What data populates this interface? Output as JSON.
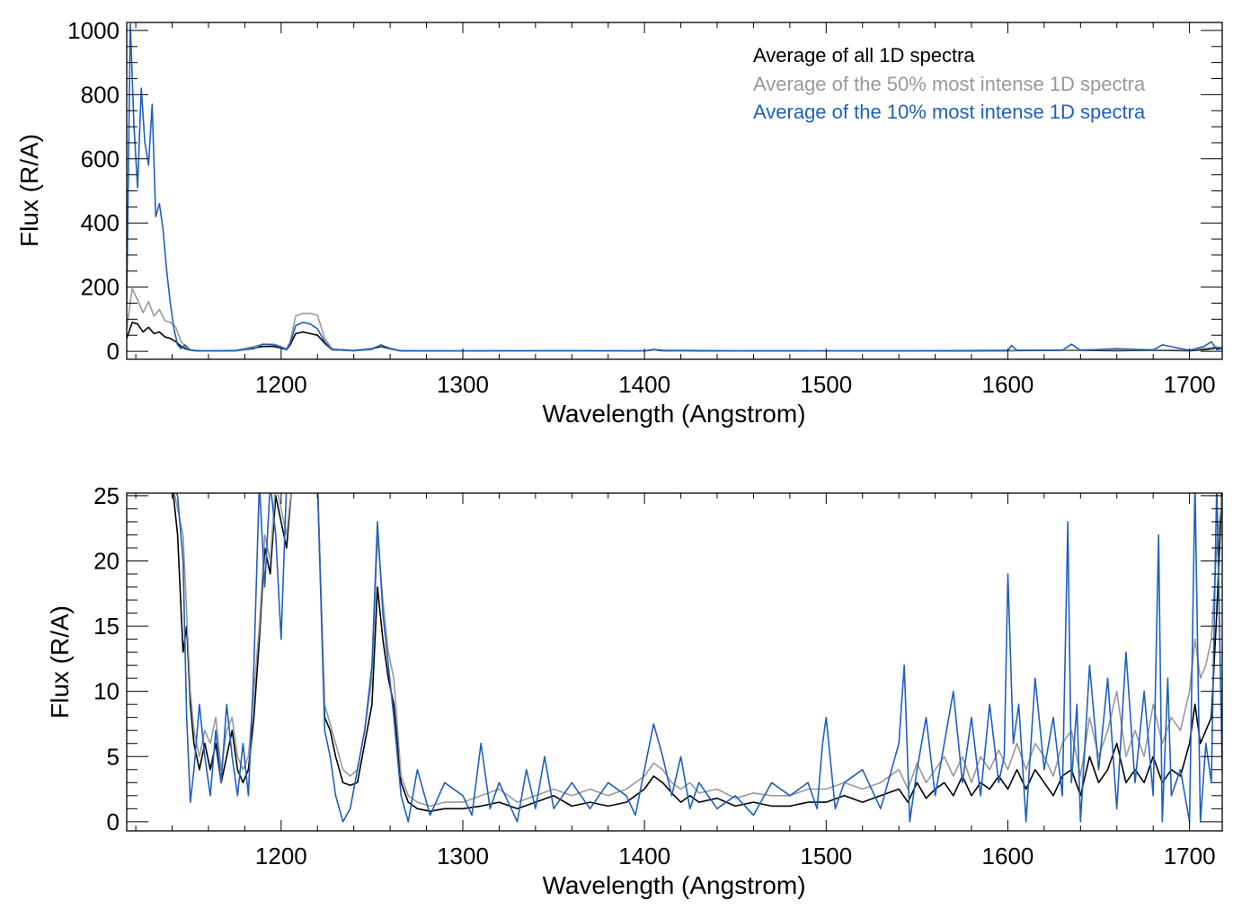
{
  "chart_data": [
    {
      "type": "line",
      "panel": "top",
      "title": "",
      "xlabel": "Wavelength (Angstrom)",
      "ylabel": "Flux (R/A)",
      "xlim": [
        1115,
        1718
      ],
      "ylim": [
        -25,
        1025
      ],
      "xticks": [
        1200,
        1300,
        1400,
        1500,
        1600,
        1700
      ],
      "xtick_labels": [
        "1200",
        "1300",
        "1400",
        "1500",
        "1600",
        "1700"
      ],
      "yticks": [
        0,
        200,
        400,
        600,
        800,
        1000
      ],
      "ytick_labels": [
        "0",
        "200",
        "400",
        "600",
        "800",
        "1000"
      ],
      "legend_placement": "top-right",
      "series": [
        {
          "name": "Average of all 1D spectra",
          "color": "#000000",
          "x": [
            1115,
            1118,
            1121,
            1124,
            1127,
            1130,
            1133,
            1136,
            1139,
            1142,
            1145,
            1148,
            1152,
            1160,
            1175,
            1185,
            1190,
            1196,
            1200,
            1203,
            1205,
            1208,
            1212,
            1216,
            1220,
            1224,
            1228,
            1240,
            1250,
            1255,
            1260,
            1265,
            1275,
            1300,
            1350,
            1400,
            1405,
            1410,
            1450,
            1500,
            1550,
            1600,
            1630,
            1640,
            1660,
            1680,
            1700,
            1710,
            1715,
            1718
          ],
          "values": [
            40,
            90,
            85,
            60,
            75,
            55,
            60,
            45,
            40,
            30,
            15,
            6,
            2,
            1,
            2,
            10,
            15,
            15,
            10,
            5,
            20,
            55,
            60,
            55,
            50,
            25,
            5,
            2,
            8,
            15,
            8,
            2,
            1,
            1,
            1,
            1,
            4,
            2,
            1,
            1,
            1,
            2,
            3,
            3,
            2,
            3,
            2,
            6,
            10,
            8
          ]
        },
        {
          "name": "Average of the 50% most intense 1D spectra",
          "color": "#999999",
          "x": [
            1115,
            1118,
            1121,
            1124,
            1127,
            1130,
            1133,
            1136,
            1139,
            1142,
            1145,
            1148,
            1152,
            1160,
            1175,
            1185,
            1190,
            1196,
            1200,
            1203,
            1205,
            1208,
            1212,
            1216,
            1220,
            1224,
            1228,
            1240,
            1250,
            1255,
            1260,
            1265,
            1275,
            1300,
            1350,
            1400,
            1405,
            1410,
            1450,
            1500,
            1550,
            1600,
            1630,
            1640,
            1660,
            1680,
            1700,
            1710,
            1715,
            1718
          ],
          "values": [
            70,
            195,
            160,
            120,
            155,
            110,
            130,
            95,
            90,
            75,
            30,
            9,
            3,
            1,
            3,
            15,
            22,
            22,
            15,
            8,
            30,
            110,
            118,
            118,
            112,
            40,
            8,
            3,
            10,
            18,
            10,
            3,
            1,
            1,
            1,
            1,
            4,
            3,
            2,
            2,
            2,
            3,
            4,
            5,
            4,
            5,
            4,
            10,
            14,
            12
          ]
        },
        {
          "name": "Average of the 10% most intense 1D spectra",
          "color": "#1f5fbf",
          "x": [
            1115,
            1117,
            1119,
            1121,
            1123,
            1125,
            1127,
            1129,
            1131,
            1133,
            1135,
            1137,
            1139,
            1141,
            1143,
            1145,
            1147,
            1150,
            1160,
            1175,
            1185,
            1190,
            1196,
            1200,
            1203,
            1205,
            1208,
            1212,
            1216,
            1220,
            1224,
            1228,
            1240,
            1250,
            1255,
            1260,
            1265,
            1275,
            1300,
            1350,
            1400,
            1405,
            1410,
            1450,
            1500,
            1550,
            1600,
            1602,
            1605,
            1630,
            1635,
            1640,
            1660,
            1680,
            1685,
            1700,
            1708,
            1712,
            1715,
            1718
          ],
          "values": [
            150,
            1020,
            700,
            510,
            820,
            650,
            580,
            770,
            420,
            460,
            380,
            250,
            150,
            70,
            20,
            8,
            20,
            3,
            1,
            2,
            8,
            22,
            20,
            12,
            5,
            25,
            80,
            90,
            85,
            70,
            30,
            5,
            2,
            6,
            20,
            8,
            2,
            1,
            1,
            2,
            1,
            6,
            3,
            1,
            1,
            1,
            3,
            18,
            3,
            3,
            22,
            3,
            8,
            4,
            20,
            3,
            15,
            30,
            5,
            8
          ]
        }
      ]
    },
    {
      "type": "line",
      "panel": "bottom",
      "title": "",
      "xlabel": "Wavelength (Angstrom)",
      "ylabel": "Flux (R/A)",
      "xlim": [
        1115,
        1718
      ],
      "ylim": [
        -0.7,
        25.2
      ],
      "xticks": [
        1200,
        1300,
        1400,
        1500,
        1600,
        1700
      ],
      "xtick_labels": [
        "1200",
        "1300",
        "1400",
        "1500",
        "1600",
        "1700"
      ],
      "yticks": [
        0,
        5,
        10,
        15,
        20,
        25
      ],
      "ytick_labels": [
        "0",
        "5",
        "10",
        "15",
        "20",
        "25"
      ],
      "series": [
        {
          "name": "Average of all 1D spectra",
          "color": "#000000",
          "x": [
            1140,
            1143,
            1146,
            1148,
            1150,
            1152,
            1155,
            1158,
            1161,
            1164,
            1167,
            1170,
            1173,
            1176,
            1179,
            1182,
            1185,
            1188,
            1191,
            1194,
            1197,
            1200,
            1203,
            1206,
            1210,
            1215,
            1220,
            1224,
            1227,
            1230,
            1234,
            1238,
            1242,
            1246,
            1250,
            1253,
            1256,
            1259,
            1262,
            1266,
            1270,
            1275,
            1282,
            1290,
            1300,
            1310,
            1320,
            1330,
            1340,
            1350,
            1360,
            1370,
            1380,
            1390,
            1395,
            1400,
            1405,
            1410,
            1415,
            1420,
            1425,
            1430,
            1440,
            1450,
            1460,
            1470,
            1480,
            1490,
            1500,
            1510,
            1520,
            1530,
            1540,
            1545,
            1550,
            1555,
            1560,
            1565,
            1570,
            1575,
            1580,
            1585,
            1590,
            1595,
            1600,
            1605,
            1610,
            1615,
            1620,
            1625,
            1630,
            1635,
            1640,
            1645,
            1650,
            1655,
            1660,
            1665,
            1670,
            1675,
            1680,
            1685,
            1690,
            1695,
            1700,
            1703,
            1706,
            1709,
            1712,
            1715,
            1718
          ],
          "values": [
            26,
            22,
            13,
            15,
            9,
            6,
            4,
            6,
            4,
            6,
            3,
            5,
            7,
            4,
            3,
            4,
            8,
            14,
            21,
            19,
            25,
            23,
            21,
            26,
            26,
            26,
            26,
            8,
            7,
            5,
            3,
            2.8,
            3,
            6,
            9,
            18,
            14,
            11,
            9,
            3,
            1.5,
            1,
            0.8,
            1,
            1,
            1.2,
            1.5,
            1,
            1.5,
            2,
            1.2,
            1.5,
            1.2,
            1.5,
            2,
            2.5,
            3.5,
            3,
            2.2,
            1.5,
            2,
            1.5,
            1.8,
            1.2,
            1.5,
            1.2,
            1.2,
            1.5,
            1.5,
            2,
            1.5,
            2,
            2.5,
            1.5,
            3,
            1.8,
            2.5,
            3,
            2,
            3.5,
            2,
            3,
            2.5,
            3.5,
            2.5,
            4,
            2.5,
            4,
            3,
            2,
            3.5,
            4,
            2,
            5,
            3,
            4,
            6,
            3,
            4,
            3,
            5,
            3,
            4,
            3.5,
            6,
            9,
            6,
            7,
            8,
            16,
            26
          ]
        },
        {
          "name": "Average of the 50% most intense 1D spectra",
          "color": "#999999",
          "x": [
            1140,
            1143,
            1146,
            1148,
            1150,
            1152,
            1155,
            1158,
            1161,
            1164,
            1167,
            1170,
            1173,
            1176,
            1179,
            1182,
            1185,
            1188,
            1191,
            1194,
            1197,
            1200,
            1203,
            1206,
            1210,
            1215,
            1220,
            1224,
            1227,
            1230,
            1234,
            1238,
            1242,
            1246,
            1250,
            1253,
            1256,
            1259,
            1262,
            1266,
            1270,
            1275,
            1282,
            1290,
            1300,
            1310,
            1320,
            1330,
            1340,
            1350,
            1360,
            1370,
            1380,
            1390,
            1395,
            1400,
            1405,
            1410,
            1415,
            1420,
            1425,
            1430,
            1440,
            1450,
            1460,
            1470,
            1480,
            1490,
            1500,
            1510,
            1520,
            1530,
            1540,
            1545,
            1550,
            1555,
            1560,
            1565,
            1570,
            1575,
            1580,
            1585,
            1590,
            1595,
            1600,
            1605,
            1610,
            1615,
            1620,
            1625,
            1630,
            1635,
            1640,
            1645,
            1650,
            1655,
            1660,
            1665,
            1670,
            1675,
            1680,
            1685,
            1690,
            1695,
            1700,
            1703,
            1706,
            1709,
            1712,
            1715,
            1718
          ],
          "values": [
            26,
            24,
            22,
            16,
            10,
            7,
            5,
            7,
            6,
            8,
            4,
            7,
            8,
            5,
            4,
            5,
            10,
            15,
            22,
            20,
            26,
            24,
            22,
            26,
            26,
            26,
            26,
            9,
            7.5,
            6,
            4,
            3.5,
            4,
            7,
            11,
            22,
            17,
            13,
            11,
            3.5,
            2,
            1.5,
            1.2,
            1.5,
            1.5,
            2,
            2.5,
            1.5,
            2,
            2.5,
            2,
            2.5,
            2,
            2.5,
            3,
            3.5,
            4.5,
            4,
            3,
            2.5,
            3,
            2.2,
            2.5,
            1.8,
            2.2,
            2,
            2,
            2.5,
            2.5,
            3,
            2.5,
            3,
            4,
            2.5,
            4.5,
            3,
            4,
            5,
            3.5,
            5,
            3,
            5,
            4,
            5.5,
            4,
            6,
            4,
            6,
            5,
            3.5,
            6,
            7,
            3.5,
            8,
            5,
            7,
            10,
            5,
            7,
            5,
            9,
            6,
            8,
            7,
            10,
            14,
            11,
            12,
            14,
            21,
            25
          ]
        },
        {
          "name": "Average of the 10% most intense 1D spectra",
          "color": "#1f5fbf",
          "x": [
            1140,
            1143,
            1146,
            1148,
            1150,
            1152,
            1155,
            1158,
            1161,
            1164,
            1167,
            1170,
            1173,
            1176,
            1179,
            1182,
            1185,
            1188,
            1191,
            1194,
            1197,
            1200,
            1203,
            1206,
            1210,
            1215,
            1220,
            1224,
            1227,
            1230,
            1234,
            1238,
            1242,
            1246,
            1250,
            1253,
            1256,
            1259,
            1262,
            1266,
            1270,
            1275,
            1282,
            1290,
            1300,
            1305,
            1310,
            1315,
            1320,
            1330,
            1335,
            1340,
            1345,
            1350,
            1360,
            1370,
            1380,
            1390,
            1395,
            1400,
            1405,
            1410,
            1415,
            1420,
            1425,
            1430,
            1440,
            1450,
            1460,
            1470,
            1480,
            1490,
            1495,
            1498,
            1500,
            1505,
            1510,
            1520,
            1530,
            1540,
            1543,
            1546,
            1550,
            1555,
            1560,
            1565,
            1570,
            1575,
            1580,
            1585,
            1590,
            1595,
            1598,
            1600,
            1603,
            1606,
            1610,
            1615,
            1620,
            1625,
            1630,
            1633,
            1635,
            1638,
            1640,
            1645,
            1650,
            1655,
            1660,
            1665,
            1670,
            1675,
            1680,
            1683,
            1685,
            1688,
            1690,
            1695,
            1700,
            1703,
            1706,
            1709,
            1712,
            1715,
            1718
          ],
          "values": [
            26,
            25,
            20,
            8,
            1.5,
            4,
            9,
            5,
            2,
            7,
            3,
            9,
            5,
            2,
            6,
            2,
            12,
            26,
            18,
            26,
            22,
            14,
            26,
            26,
            26,
            26,
            26,
            7,
            5,
            2,
            0,
            1,
            4,
            7,
            12,
            23,
            16,
            12,
            8,
            2,
            0,
            4,
            0.5,
            3,
            2,
            0.5,
            6,
            1,
            3,
            0,
            4,
            1,
            5,
            1,
            3,
            1,
            3,
            2,
            0.5,
            4,
            7.5,
            5,
            2,
            5,
            1,
            3,
            1,
            2,
            0.5,
            3,
            2,
            3,
            1,
            6,
            8,
            1,
            3,
            4,
            1,
            6,
            12,
            0,
            4,
            8,
            2,
            6,
            10,
            3,
            8,
            2,
            9,
            3,
            5,
            19,
            6,
            9,
            0,
            11,
            4,
            8,
            2,
            23,
            3,
            9,
            0,
            12,
            4,
            11,
            1,
            13,
            3,
            10,
            2,
            22,
            0,
            11,
            2,
            4,
            0,
            26,
            0,
            6,
            3,
            26,
            4
          ]
        }
      ]
    }
  ]
}
